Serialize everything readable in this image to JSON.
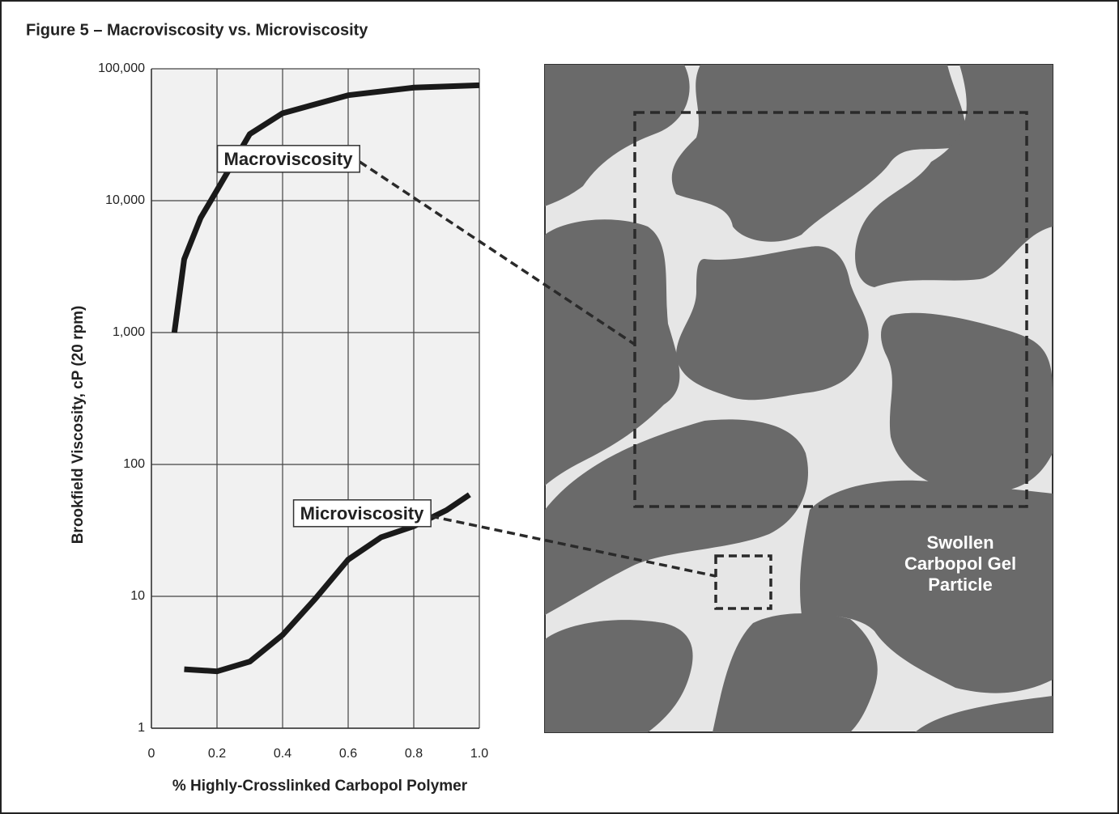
{
  "chart_data": {
    "type": "line",
    "title": "Figure 5 – Macroviscosity vs. Microviscosity",
    "x_label": "% Highly-Crosslinked Carbopol Polymer",
    "y_label": "Brookfield Viscosity, cP (20 rpm)",
    "xlim": [
      0,
      1.0
    ],
    "xticks": [
      0,
      0.2,
      0.4,
      0.6,
      0.8,
      {
        "value": 1.0,
        "label": "1.0"
      }
    ],
    "ylim": [
      1,
      100000
    ],
    "y_log": true,
    "yticks": [
      1,
      10,
      100,
      {
        "value": 1000,
        "label": "1,000"
      },
      {
        "value": 10000,
        "label": "10,000"
      },
      {
        "value": 100000,
        "label": "100,000"
      }
    ],
    "grid": true,
    "series": [
      {
        "name": "Macroviscosity",
        "color": "#1a1a1a",
        "x": [
          0.07,
          0.1,
          0.15,
          0.2,
          0.3,
          0.4,
          0.6,
          0.8,
          1.0
        ],
        "values": [
          1000,
          3600,
          7400,
          12000,
          32000,
          46000,
          63000,
          72000,
          75000
        ]
      },
      {
        "name": "Microviscosity",
        "color": "#1a1a1a",
        "x": [
          0.1,
          0.2,
          0.3,
          0.4,
          0.5,
          0.6,
          0.7,
          0.8,
          0.9,
          0.97
        ],
        "values": [
          2.8,
          2.7,
          3.2,
          5.1,
          9.6,
          19,
          28,
          34,
          45,
          59
        ]
      }
    ]
  },
  "diagram": {
    "label": [
      "Swollen",
      "Carbopol Gel",
      "Particle"
    ]
  }
}
